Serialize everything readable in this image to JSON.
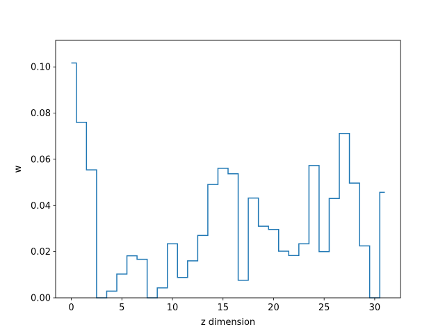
{
  "chart_data": {
    "type": "line",
    "drawstyle": "steps-mid",
    "title": "",
    "xlabel": "z dimension",
    "ylabel": "w",
    "xlim": [
      -1.55,
      32.55
    ],
    "ylim": [
      0.0,
      0.1115
    ],
    "x_ticks": [
      0,
      5,
      10,
      15,
      20,
      25,
      30
    ],
    "x_tick_labels": [
      "0",
      "5",
      "10",
      "15",
      "20",
      "25",
      "30"
    ],
    "y_ticks": [
      0.0,
      0.02,
      0.04,
      0.06,
      0.08,
      0.1
    ],
    "y_tick_labels": [
      "0.00",
      "0.02",
      "0.04",
      "0.06",
      "0.08",
      "0.10"
    ],
    "grid": false,
    "legend": "none",
    "series": [
      {
        "color": "#1f77b4",
        "x": [
          0,
          1,
          2,
          3,
          4,
          5,
          6,
          7,
          8,
          9,
          10,
          11,
          12,
          13,
          14,
          15,
          16,
          17,
          18,
          19,
          20,
          21,
          22,
          23,
          24,
          25,
          26,
          27,
          28,
          29,
          30,
          31
        ],
        "values": [
          0.1017,
          0.076,
          0.0554,
          0.0,
          0.0029,
          0.0103,
          0.0182,
          0.0167,
          0.0,
          0.0043,
          0.0234,
          0.0088,
          0.016,
          0.027,
          0.0491,
          0.0561,
          0.0537,
          0.0076,
          0.0432,
          0.031,
          0.0296,
          0.0202,
          0.0183,
          0.0234,
          0.0573,
          0.02,
          0.043,
          0.0712,
          0.0497,
          0.0225,
          0.0,
          0.0457
        ]
      }
    ]
  }
}
